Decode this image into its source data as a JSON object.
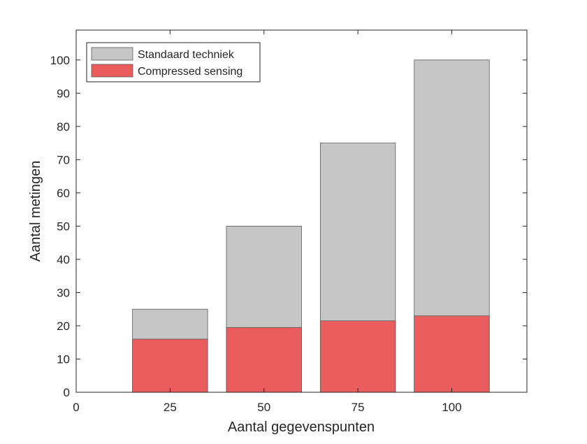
{
  "chart_data": {
    "type": "bar",
    "stacked": "overlay",
    "x": [
      25,
      50,
      75,
      100
    ],
    "series": [
      {
        "name": "Standaard techniek",
        "values": [
          25,
          50,
          75,
          100
        ],
        "color": "#c6c6c6"
      },
      {
        "name": "Compressed sensing",
        "values": [
          16,
          19.5,
          21.5,
          23
        ],
        "color": "#eb5c5c"
      }
    ],
    "xlabel": "Aantal gegevenspunten",
    "ylabel": "Aantal metingen",
    "xlim": [
      0,
      120
    ],
    "ylim": [
      0,
      109
    ],
    "xticks": [
      0,
      25,
      50,
      75,
      100
    ],
    "yticks": [
      0,
      10,
      20,
      30,
      40,
      50,
      60,
      70,
      80,
      90,
      100
    ],
    "grid": false,
    "legend_position": "top-left"
  }
}
